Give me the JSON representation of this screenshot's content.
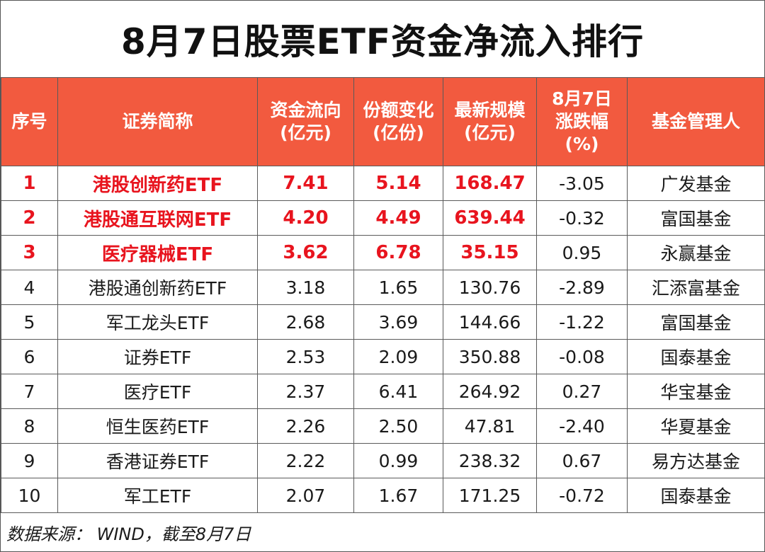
{
  "title": "8月7日股票ETF资金净流入排行",
  "headers": {
    "rank": "序号",
    "name": "证券简称",
    "flow_l1": "资金流向",
    "flow_l2": "(亿元)",
    "share_l1": "份额变化",
    "share_l2": "(亿份)",
    "scale_l1": "最新规模",
    "scale_l2": "(亿元)",
    "chg_l1": "8月7日",
    "chg_l2": "涨跌幅",
    "chg_l3": "(%)",
    "manager": "基金管理人"
  },
  "rows": [
    {
      "rank": "1",
      "name": "港股创新药ETF",
      "flow": "7.41",
      "share": "5.14",
      "scale": "168.47",
      "chg": "-3.05",
      "manager": "广发基金"
    },
    {
      "rank": "2",
      "name": "港股通互联网ETF",
      "flow": "4.20",
      "share": "4.49",
      "scale": "639.44",
      "chg": "-0.32",
      "manager": "富国基金"
    },
    {
      "rank": "3",
      "name": "医疗器械ETF",
      "flow": "3.62",
      "share": "6.78",
      "scale": "35.15",
      "chg": "0.95",
      "manager": "永赢基金"
    },
    {
      "rank": "4",
      "name": "港股通创新药ETF",
      "flow": "3.18",
      "share": "1.65",
      "scale": "130.76",
      "chg": "-2.89",
      "manager": "汇添富基金"
    },
    {
      "rank": "5",
      "name": "军工龙头ETF",
      "flow": "2.68",
      "share": "3.69",
      "scale": "144.66",
      "chg": "-1.22",
      "manager": "富国基金"
    },
    {
      "rank": "6",
      "name": "证券ETF",
      "flow": "2.53",
      "share": "2.09",
      "scale": "350.88",
      "chg": "-0.08",
      "manager": "国泰基金"
    },
    {
      "rank": "7",
      "name": "医疗ETF",
      "flow": "2.37",
      "share": "6.41",
      "scale": "264.92",
      "chg": "0.27",
      "manager": "华宝基金"
    },
    {
      "rank": "8",
      "name": "恒生医药ETF",
      "flow": "2.26",
      "share": "2.50",
      "scale": "47.81",
      "chg": "-2.40",
      "manager": "华夏基金"
    },
    {
      "rank": "9",
      "name": "香港证券ETF",
      "flow": "2.22",
      "share": "0.99",
      "scale": "238.32",
      "chg": "0.67",
      "manager": "易方达基金"
    },
    {
      "rank": "10",
      "name": "军工ETF",
      "flow": "2.07",
      "share": "1.67",
      "scale": "171.25",
      "chg": "-0.72",
      "manager": "国泰基金"
    }
  ],
  "footer": "数据来源： WIND，截至8月7日",
  "colors": {
    "header_bg": "#f25a3f",
    "highlight_text": "#e8141e"
  }
}
